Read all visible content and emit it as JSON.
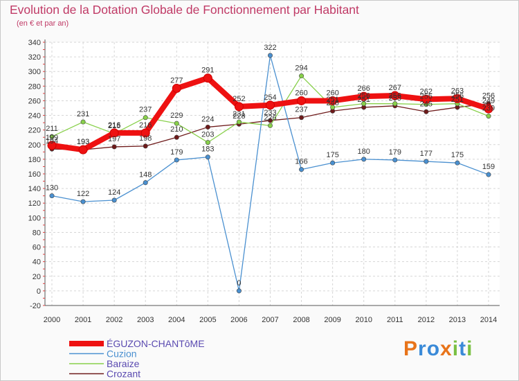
{
  "chart_data": {
    "type": "line",
    "title": "Evolution de la Dotation Globale de Fonctionnement par Habitant",
    "subtitle": "(en € et par an)",
    "xlabel": "",
    "ylabel": "",
    "ylim": [
      -20,
      340
    ],
    "yticks": [
      -20,
      0,
      20,
      40,
      60,
      80,
      100,
      120,
      140,
      160,
      180,
      200,
      220,
      240,
      260,
      280,
      300,
      320,
      340
    ],
    "categories": [
      "2000",
      "2001",
      "2002",
      "2003",
      "2004",
      "2005",
      "2006",
      "2007",
      "2008",
      "2009",
      "2010",
      "2011",
      "2012",
      "2013",
      "2014"
    ],
    "grid": true,
    "series": [
      {
        "name": "Crozant",
        "color": "#6e1a1a",
        "values": [
          194,
          193,
          197,
          198,
          210,
          224,
          228,
          233,
          237,
          246,
          251,
          253,
          245,
          251,
          256
        ]
      },
      {
        "name": "Baraize",
        "color": "#88d04a",
        "values": [
          211,
          231,
          215,
          237,
          229,
          203,
          231,
          226,
          294,
          251,
          256,
          256,
          255,
          256,
          239
        ]
      },
      {
        "name": "Cuzion",
        "color": "#4a90d0",
        "values": [
          130,
          122,
          124,
          148,
          179,
          183,
          0,
          322,
          166,
          175,
          180,
          179,
          177,
          175,
          159
        ]
      },
      {
        "name": "ÉGUZON-CHANTôME",
        "color": "#ee1111",
        "values": [
          199,
          193,
          216,
          216,
          277,
          291,
          252,
          254,
          260,
          260,
          266,
          267,
          262,
          263,
          249
        ]
      }
    ],
    "data_labels": {
      "Crozant": [
        "194",
        "193",
        "197",
        "198",
        "210",
        "224",
        "228",
        "233",
        "237",
        "246",
        "251",
        "253",
        "245",
        "251",
        "256"
      ],
      "Baraize": [
        "211",
        "231",
        "215",
        "237",
        "229",
        "203",
        "231",
        "226",
        "294",
        "251",
        "256",
        "256",
        "255",
        "256",
        "239"
      ],
      "Cuzion": [
        "130",
        "122",
        "124",
        "148",
        "179",
        "183",
        "0",
        "322",
        "166",
        "175",
        "180",
        "179",
        "177",
        "175",
        "159"
      ],
      "ÉGUZON-CHANTôME": [
        "199",
        "193",
        "216",
        "216",
        "277",
        "291",
        "252",
        "254",
        "260",
        "260",
        "266",
        "267",
        "262",
        "263",
        "249"
      ]
    },
    "legend": {
      "placement": "bottom-left",
      "entries": [
        "ÉGUZON-CHANTôME",
        "Cuzion",
        "Baraize",
        "Crozant"
      ]
    }
  },
  "logo": {
    "text": "Proxiti",
    "letters": [
      "P",
      "r",
      "o",
      "x",
      "i",
      "t",
      "i"
    ]
  }
}
